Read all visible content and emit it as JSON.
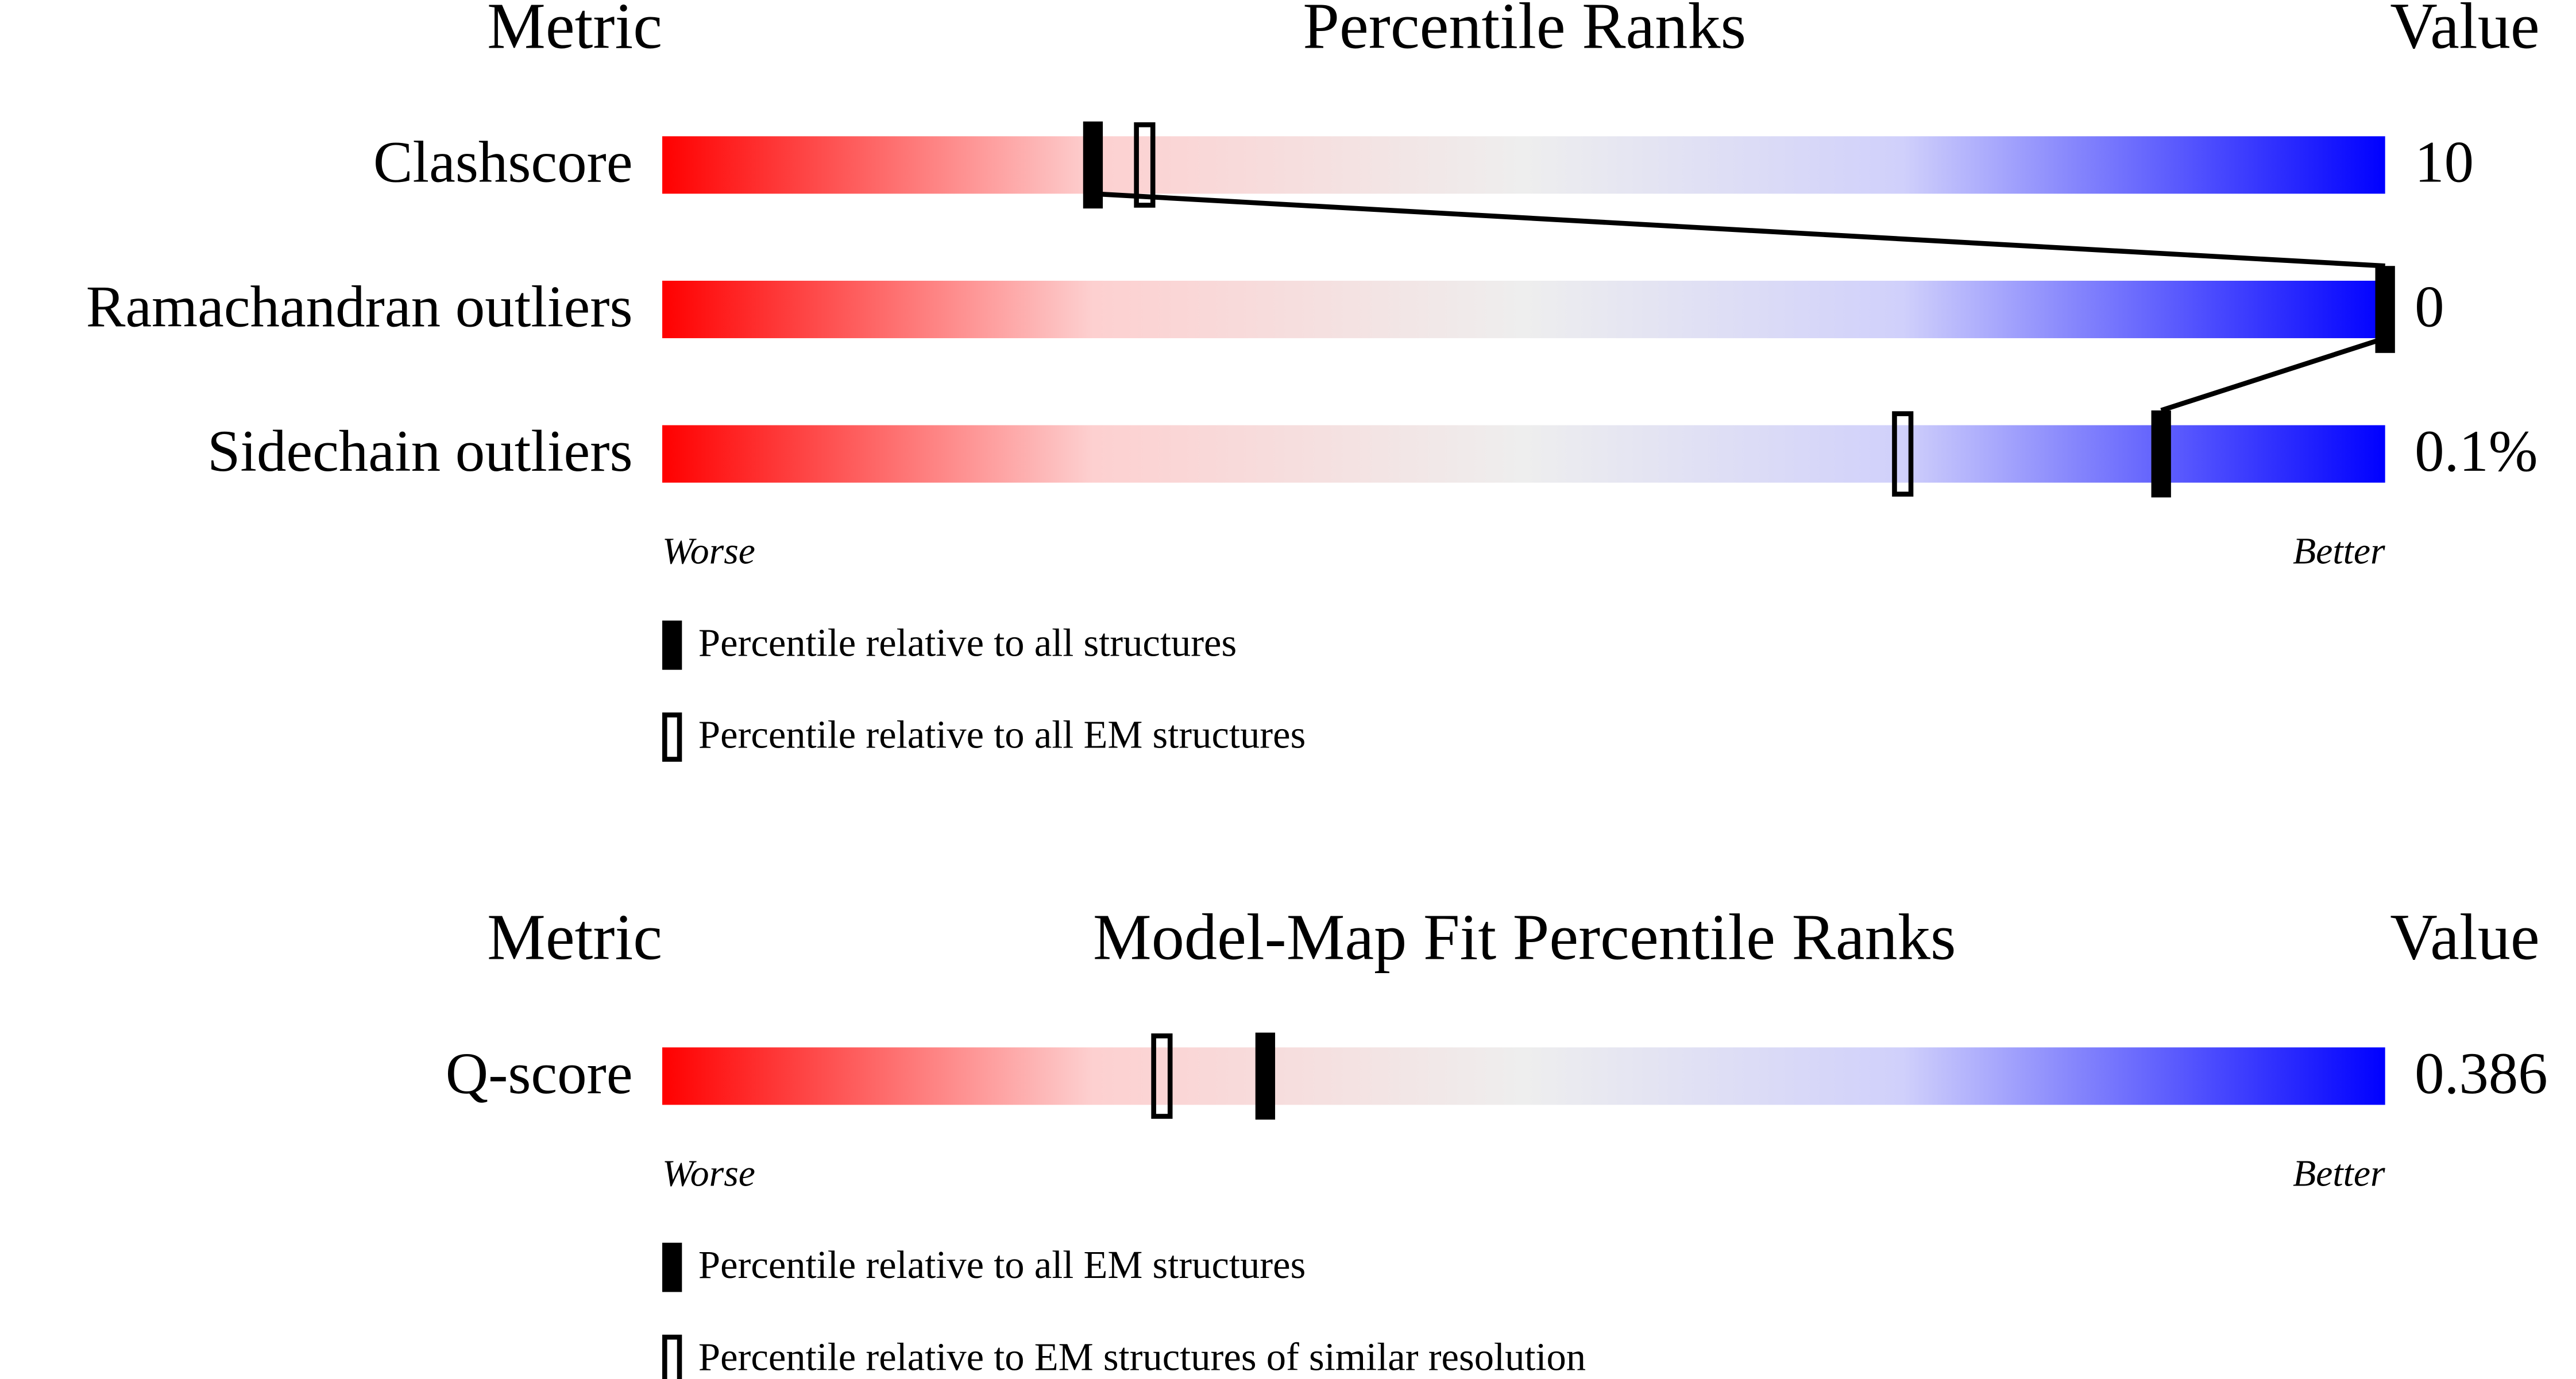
{
  "chart_data": [
    {
      "type": "percentile",
      "header": {
        "metric": "Metric",
        "title": "Percentile Ranks",
        "value": "Value"
      },
      "categories": [
        "Clashscore",
        "Ramachandran outliers",
        "Sidechain outliers"
      ],
      "metric_values": [
        "10",
        "0",
        "0.1%"
      ],
      "series": [
        {
          "name": "Percentile relative to all structures",
          "style": "filled",
          "color": "#000000",
          "values": [
            25,
            100,
            87
          ]
        },
        {
          "name": "Percentile relative to all EM structures",
          "style": "open",
          "color": "#000000",
          "values": [
            28,
            null,
            72
          ]
        }
      ],
      "xlim": [
        0,
        100
      ],
      "scale_labels": [
        "Worse",
        "Better"
      ],
      "connect_filled": true
    },
    {
      "type": "percentile",
      "header": {
        "metric": "Metric",
        "title": "Model-Map Fit Percentile Ranks",
        "value": "Value"
      },
      "categories": [
        "Q-score"
      ],
      "metric_values": [
        "0.386"
      ],
      "series": [
        {
          "name": "Percentile relative to all EM structures",
          "style": "filled",
          "color": "#000000",
          "values": [
            35
          ]
        },
        {
          "name": "Percentile relative to EM structures of similar resolution",
          "style": "open",
          "color": "#000000",
          "values": [
            29
          ]
        }
      ],
      "xlim": [
        0,
        100
      ],
      "scale_labels": [
        "Worse",
        "Better"
      ],
      "connect_filled": false
    }
  ]
}
